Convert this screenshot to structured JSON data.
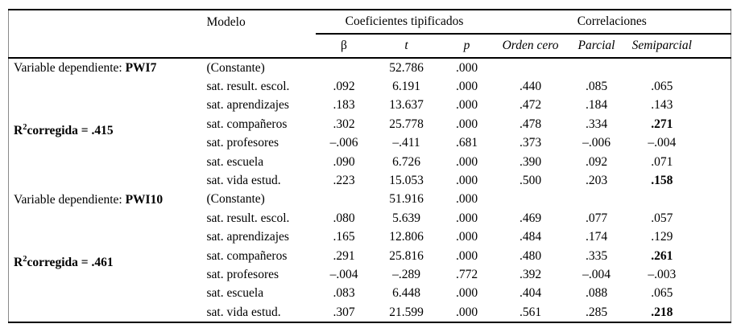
{
  "table": {
    "header": {
      "modelo": "Modelo",
      "group_coef": "Coeficientes tipificados",
      "group_corr": "Correlaciones",
      "sub": [
        "β",
        "t",
        "p",
        "Orden cero",
        "Parcial",
        "Semiparcial"
      ]
    },
    "blocks": [
      {
        "dep_label": "Variable dependiente:",
        "dep_var": "PWI7",
        "r2_prefix": "R",
        "r2_sup": "2",
        "r2_text": "corregida = .415",
        "rows": [
          {
            "modelo": "(Constante)",
            "cells": [
              "",
              "52.786",
              ".000",
              "",
              "",
              ""
            ],
            "bold_last": false
          },
          {
            "modelo": "sat. result. escol.",
            "cells": [
              ".092",
              "6.191",
              ".000",
              ".440",
              ".085",
              ".065"
            ],
            "bold_last": false
          },
          {
            "modelo": "sat. aprendizajes",
            "cells": [
              ".183",
              "13.637",
              ".000",
              ".472",
              ".184",
              ".143"
            ],
            "bold_last": false
          },
          {
            "modelo": "sat. compañeros",
            "cells": [
              ".302",
              "25.778",
              ".000",
              ".478",
              ".334",
              ".271"
            ],
            "bold_last": true
          },
          {
            "modelo": "sat. profesores",
            "cells": [
              "–.006",
              "–.411",
              ".681",
              ".373",
              "–.006",
              "–.004"
            ],
            "bold_last": false
          },
          {
            "modelo": "sat. escuela",
            "cells": [
              ".090",
              "6.726",
              ".000",
              ".390",
              ".092",
              ".071"
            ],
            "bold_last": false
          },
          {
            "modelo": "sat. vida estud.",
            "cells": [
              ".223",
              "15.053",
              ".000",
              ".500",
              ".203",
              ".158"
            ],
            "bold_last": true
          }
        ]
      },
      {
        "dep_label": "Variable dependiente:",
        "dep_var": "PWI10",
        "r2_prefix": "R",
        "r2_sup": "2",
        "r2_text": "corregida = .461",
        "rows": [
          {
            "modelo": "(Constante)",
            "cells": [
              "",
              "51.916",
              ".000",
              "",
              "",
              ""
            ],
            "bold_last": false
          },
          {
            "modelo": "sat. result. escol.",
            "cells": [
              ".080",
              "5.639",
              ".000",
              ".469",
              ".077",
              ".057"
            ],
            "bold_last": false
          },
          {
            "modelo": "sat. aprendizajes",
            "cells": [
              ".165",
              "12.806",
              ".000",
              ".484",
              ".174",
              ".129"
            ],
            "bold_last": false
          },
          {
            "modelo": "sat. compañeros",
            "cells": [
              ".291",
              "25.816",
              ".000",
              ".480",
              ".335",
              ".261"
            ],
            "bold_last": true
          },
          {
            "modelo": "sat. profesores",
            "cells": [
              "–.004",
              "–.289",
              ".772",
              ".392",
              "–.004",
              "–.003"
            ],
            "bold_last": false
          },
          {
            "modelo": "sat. escuela",
            "cells": [
              ".083",
              "6.448",
              ".000",
              ".404",
              ".088",
              ".065"
            ],
            "bold_last": false
          },
          {
            "modelo": "sat. vida estud.",
            "cells": [
              ".307",
              "21.599",
              ".000",
              ".561",
              ".285",
              ".218"
            ],
            "bold_last": true
          }
        ]
      }
    ]
  }
}
